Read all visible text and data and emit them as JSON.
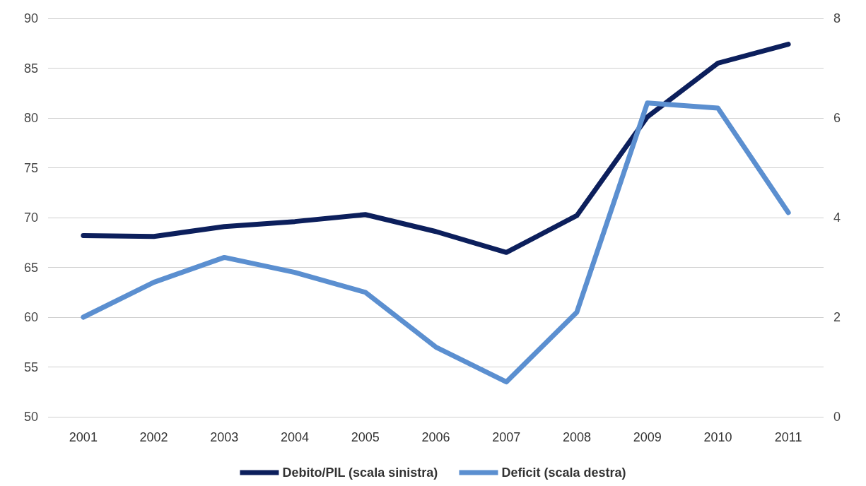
{
  "chart_data": {
    "type": "line",
    "categories": [
      "2001",
      "2002",
      "2003",
      "2004",
      "2005",
      "2006",
      "2007",
      "2008",
      "2009",
      "2010",
      "2011"
    ],
    "series": [
      {
        "name": "Debito/PIL (scala sinistra)",
        "color": "#0c1f5c",
        "values": [
          68.2,
          68.1,
          69.1,
          69.6,
          70.3,
          68.6,
          66.5,
          70.2,
          80.1,
          85.5,
          87.4
        ]
      },
      {
        "name": "Deficit (scala destra)",
        "color": "#5b8fd0",
        "axis": "y2",
        "values": [
          2.0,
          2.7,
          3.2,
          2.9,
          2.5,
          1.4,
          0.7,
          2.1,
          6.3,
          6.2,
          4.1
        ]
      }
    ],
    "ylim": [
      50,
      90
    ],
    "yticks": [
      50,
      55,
      60,
      65,
      70,
      75,
      80,
      85,
      90
    ],
    "y2lim": [
      0,
      8
    ],
    "y2ticks": [
      0,
      2,
      4,
      6,
      8
    ],
    "grid": "y",
    "legend": "bottom",
    "marker": "none",
    "line_style": "solid"
  }
}
